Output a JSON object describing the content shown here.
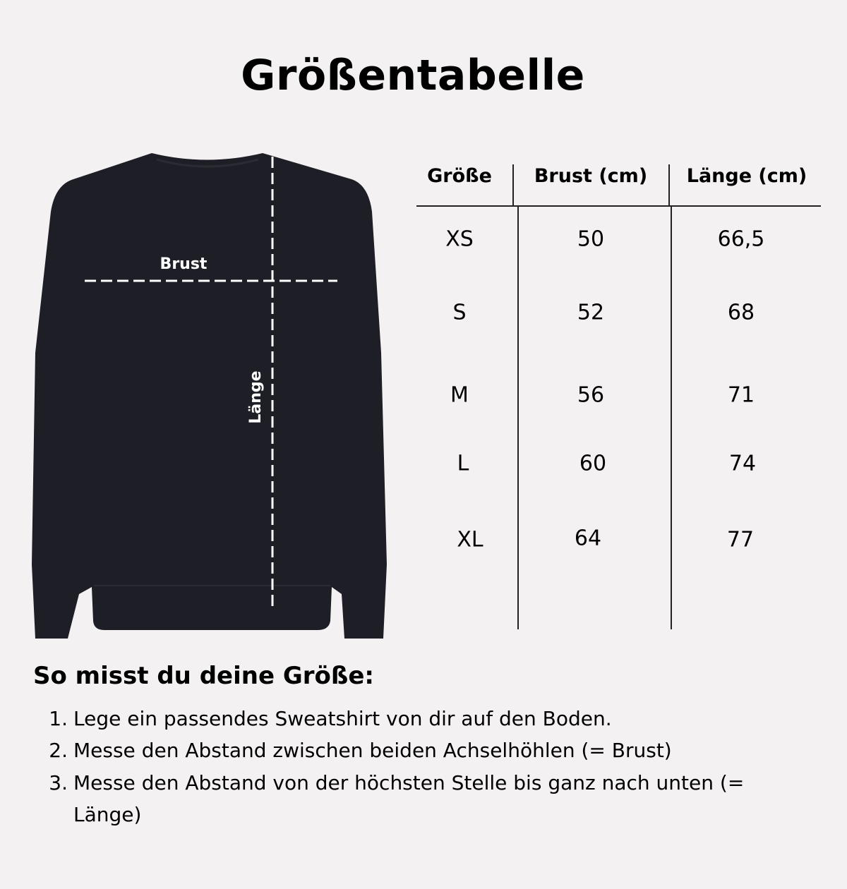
{
  "title": "Größentabelle",
  "illustration": {
    "chest_label": "Brust",
    "length_label": "Länge",
    "garment_color": "#1e1f26",
    "line_color": "#ffffff"
  },
  "table": {
    "headers": [
      "Größe",
      "Brust (cm)",
      "Länge (cm)"
    ],
    "rows": [
      {
        "size": "XS",
        "chest": "50",
        "length": "66,5"
      },
      {
        "size": "S",
        "chest": "52",
        "length": "68"
      },
      {
        "size": "M",
        "chest": "56",
        "length": "71"
      },
      {
        "size": "L",
        "chest": "60",
        "length": "74"
      },
      {
        "size": "XL",
        "chest": "64",
        "length": "77"
      }
    ]
  },
  "instructions": {
    "heading": "So misst du deine Größe:",
    "steps": [
      {
        "num": "1.",
        "text": "Lege ein passendes Sweatshirt von dir auf den Boden."
      },
      {
        "num": "2.",
        "text": "Messe den Abstand zwischen beiden Achselhöhlen (= Brust)"
      },
      {
        "num": "3.",
        "text": "Messe den Abstand von der höchsten Stelle bis ganz nach unten (= Länge)"
      }
    ]
  },
  "background_color": "#f3f1f2"
}
